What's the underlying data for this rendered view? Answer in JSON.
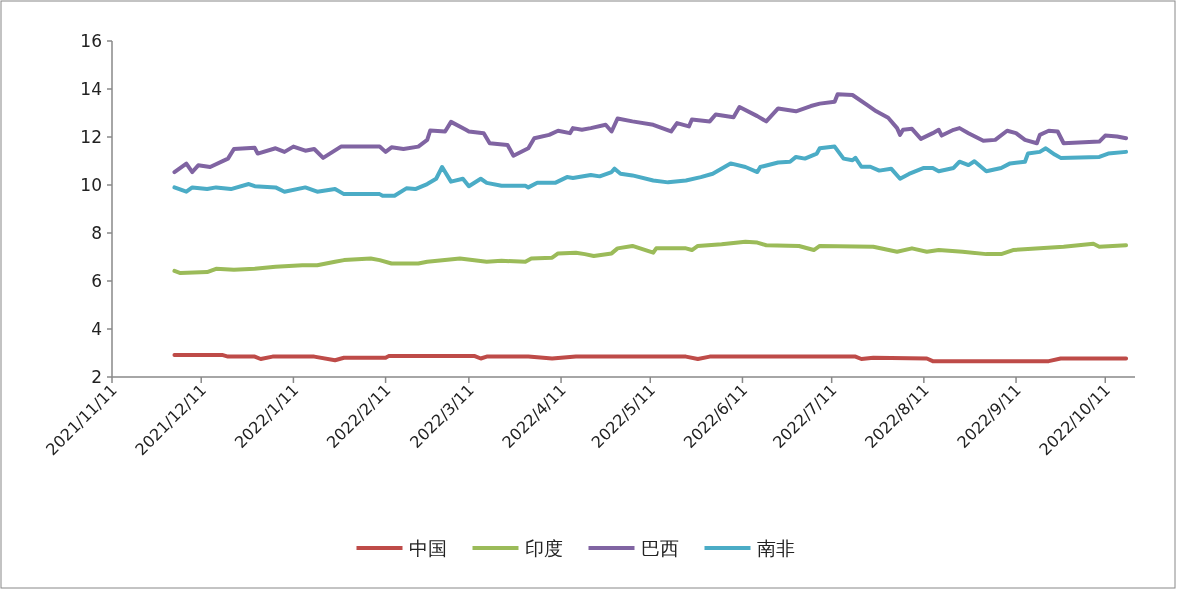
{
  "chart_data": {
    "type": "line",
    "legend": "bottom",
    "ylim": [
      2,
      16
    ],
    "yticks": [
      2,
      4,
      6,
      8,
      10,
      12,
      14,
      16
    ],
    "xlim": [
      "2021-11-11",
      "2022-10-21"
    ],
    "xticks": [
      {
        "value": "2021-11-11",
        "label": "2021/11/11"
      },
      {
        "value": "2021-12-11",
        "label": "2021/12/11"
      },
      {
        "value": "2022-01-11",
        "label": "2022/1/11"
      },
      {
        "value": "2022-02-11",
        "label": "2022/2/11"
      },
      {
        "value": "2022-03-11",
        "label": "2022/3/11"
      },
      {
        "value": "2022-04-11",
        "label": "2022/4/11"
      },
      {
        "value": "2022-05-11",
        "label": "2022/5/11"
      },
      {
        "value": "2022-06-11",
        "label": "2022/6/11"
      },
      {
        "value": "2022-07-11",
        "label": "2022/7/11"
      },
      {
        "value": "2022-08-11",
        "label": "2022/8/11"
      },
      {
        "value": "2022-09-11",
        "label": "2022/9/11"
      },
      {
        "value": "2022-10-11",
        "label": "2022/10/11"
      }
    ],
    "series": [
      {
        "name": "中国",
        "color": "#be4b48",
        "x": [
          "2021-12-02",
          "2021-12-18",
          "2021-12-20",
          "2021-12-29",
          "2021-12-31",
          "2022-01-04",
          "2022-01-18",
          "2022-01-25",
          "2022-01-28",
          "2022-02-11",
          "2022-02-12",
          "2022-03-13",
          "2022-03-15",
          "2022-03-17",
          "2022-03-31",
          "2022-04-08",
          "2022-04-16",
          "2022-05-05",
          "2022-05-23",
          "2022-05-27",
          "2022-05-31",
          "2022-07-19",
          "2022-07-21",
          "2022-07-25",
          "2022-08-12",
          "2022-08-14",
          "2022-09-22",
          "2022-09-26",
          "2022-10-18"
        ],
        "values": [
          2.92,
          2.92,
          2.85,
          2.85,
          2.75,
          2.85,
          2.85,
          2.7,
          2.8,
          2.8,
          2.87,
          2.87,
          2.77,
          2.85,
          2.85,
          2.77,
          2.85,
          2.85,
          2.85,
          2.75,
          2.85,
          2.85,
          2.75,
          2.8,
          2.77,
          2.66,
          2.66,
          2.77,
          2.77
        ]
      },
      {
        "name": "印度",
        "color": "#9bbb59",
        "x": [
          "2021-12-02",
          "2021-12-04",
          "2021-12-13",
          "2021-12-16",
          "2021-12-22",
          "2021-12-29",
          "2022-01-05",
          "2022-01-14",
          "2022-01-19",
          "2022-01-25",
          "2022-01-28",
          "2022-02-06",
          "2022-02-09",
          "2022-02-13",
          "2022-02-22",
          "2022-02-25",
          "2022-03-08",
          "2022-03-17",
          "2022-03-22",
          "2022-03-30",
          "2022-04-01",
          "2022-04-08",
          "2022-04-10",
          "2022-04-16",
          "2022-04-19",
          "2022-04-22",
          "2022-04-28",
          "2022-04-30",
          "2022-05-05",
          "2022-05-12",
          "2022-05-13",
          "2022-05-23",
          "2022-05-25",
          "2022-05-27",
          "2022-06-04",
          "2022-06-12",
          "2022-06-16",
          "2022-06-19",
          "2022-06-30",
          "2022-07-05",
          "2022-07-07",
          "2022-07-25",
          "2022-08-02",
          "2022-08-07",
          "2022-08-12",
          "2022-08-16",
          "2022-08-24",
          "2022-09-01",
          "2022-09-06",
          "2022-09-10",
          "2022-09-19",
          "2022-09-27",
          "2022-10-07",
          "2022-10-09",
          "2022-10-18"
        ],
        "values": [
          6.42,
          6.33,
          6.37,
          6.51,
          6.47,
          6.51,
          6.59,
          6.66,
          6.66,
          6.8,
          6.87,
          6.94,
          6.87,
          6.73,
          6.73,
          6.8,
          6.94,
          6.8,
          6.84,
          6.8,
          6.94,
          6.97,
          7.15,
          7.18,
          7.12,
          7.04,
          7.15,
          7.36,
          7.46,
          7.18,
          7.36,
          7.36,
          7.29,
          7.46,
          7.53,
          7.64,
          7.6,
          7.49,
          7.46,
          7.29,
          7.46,
          7.43,
          7.22,
          7.36,
          7.22,
          7.29,
          7.22,
          7.12,
          7.12,
          7.29,
          7.36,
          7.43,
          7.55,
          7.43,
          7.49
        ]
      },
      {
        "name": "巴西",
        "color": "#8064a2",
        "x": [
          "2021-12-02",
          "2021-12-06",
          "2021-12-08",
          "2021-12-10",
          "2021-12-14",
          "2021-12-20",
          "2021-12-22",
          "2021-12-29",
          "2021-12-30",
          "2022-01-05",
          "2022-01-08",
          "2022-01-11",
          "2022-01-15",
          "2022-01-18",
          "2022-01-21",
          "2022-01-27",
          "2022-02-09",
          "2022-02-11",
          "2022-02-13",
          "2022-02-17",
          "2022-02-22",
          "2022-02-25",
          "2022-02-26",
          "2022-03-03",
          "2022-03-05",
          "2022-03-10",
          "2022-03-11",
          "2022-03-16",
          "2022-03-18",
          "2022-03-24",
          "2022-03-26",
          "2022-03-31",
          "2022-04-02",
          "2022-04-07",
          "2022-04-10",
          "2022-04-14",
          "2022-04-15",
          "2022-04-18",
          "2022-04-21",
          "2022-04-26",
          "2022-04-28",
          "2022-04-30",
          "2022-05-05",
          "2022-05-12",
          "2022-05-18",
          "2022-05-20",
          "2022-05-24",
          "2022-05-25",
          "2022-05-31",
          "2022-06-02",
          "2022-06-08",
          "2022-06-10",
          "2022-06-16",
          "2022-06-19",
          "2022-06-23",
          "2022-06-29",
          "2022-07-04",
          "2022-07-07",
          "2022-07-12",
          "2022-07-13",
          "2022-07-18",
          "2022-07-23",
          "2022-07-26",
          "2022-07-30",
          "2022-08-02",
          "2022-08-03",
          "2022-08-04",
          "2022-08-07",
          "2022-08-10",
          "2022-08-14",
          "2022-08-16",
          "2022-08-17",
          "2022-08-21",
          "2022-08-23",
          "2022-08-26",
          "2022-08-31",
          "2022-09-04",
          "2022-09-08",
          "2022-09-11",
          "2022-09-14",
          "2022-09-18",
          "2022-09-19",
          "2022-09-22",
          "2022-09-25",
          "2022-09-27",
          "2022-10-09",
          "2022-10-11",
          "2022-10-15",
          "2022-10-18"
        ],
        "values": [
          10.54,
          10.89,
          10.54,
          10.82,
          10.75,
          11.1,
          11.5,
          11.55,
          11.31,
          11.53,
          11.38,
          11.6,
          11.43,
          11.5,
          11.13,
          11.6,
          11.6,
          11.38,
          11.57,
          11.5,
          11.6,
          11.88,
          12.27,
          12.23,
          12.63,
          12.3,
          12.23,
          12.16,
          11.74,
          11.67,
          11.22,
          11.53,
          11.95,
          12.09,
          12.26,
          12.16,
          12.37,
          12.3,
          12.37,
          12.51,
          12.23,
          12.77,
          12.65,
          12.51,
          12.23,
          12.58,
          12.44,
          12.73,
          12.65,
          12.94,
          12.82,
          13.25,
          12.87,
          12.65,
          13.19,
          13.07,
          13.29,
          13.39,
          13.47,
          13.78,
          13.75,
          13.33,
          13.07,
          12.8,
          12.37,
          12.09,
          12.3,
          12.34,
          11.92,
          12.16,
          12.3,
          12.06,
          12.3,
          12.37,
          12.16,
          11.84,
          11.88,
          12.26,
          12.16,
          11.88,
          11.74,
          12.09,
          12.26,
          12.23,
          11.74,
          11.81,
          12.06,
          12.02,
          11.95
        ]
      },
      {
        "name": "南非",
        "color": "#4bacc6",
        "x": [
          "2021-12-02",
          "2021-12-06",
          "2021-12-08",
          "2021-12-13",
          "2021-12-16",
          "2021-12-21",
          "2021-12-27",
          "2021-12-29",
          "2022-01-05",
          "2022-01-08",
          "2022-01-15",
          "2022-01-19",
          "2022-01-25",
          "2022-01-28",
          "2022-02-09",
          "2022-02-10",
          "2022-02-14",
          "2022-02-18",
          "2022-02-21",
          "2022-02-25",
          "2022-02-28",
          "2022-03-02",
          "2022-03-05",
          "2022-03-09",
          "2022-03-11",
          "2022-03-15",
          "2022-03-17",
          "2022-03-22",
          "2022-03-30",
          "2022-03-31",
          "2022-04-03",
          "2022-04-09",
          "2022-04-13",
          "2022-04-15",
          "2022-04-21",
          "2022-04-24",
          "2022-04-28",
          "2022-04-29",
          "2022-05-01",
          "2022-05-05",
          "2022-05-12",
          "2022-05-17",
          "2022-05-23",
          "2022-05-28",
          "2022-06-01",
          "2022-06-07",
          "2022-06-12",
          "2022-06-16",
          "2022-06-17",
          "2022-06-23",
          "2022-06-27",
          "2022-06-29",
          "2022-07-02",
          "2022-07-06",
          "2022-07-07",
          "2022-07-12",
          "2022-07-15",
          "2022-07-18",
          "2022-07-19",
          "2022-07-21",
          "2022-07-24",
          "2022-07-27",
          "2022-07-31",
          "2022-08-03",
          "2022-08-06",
          "2022-08-11",
          "2022-08-14",
          "2022-08-16",
          "2022-08-21",
          "2022-08-23",
          "2022-08-26",
          "2022-08-28",
          "2022-09-01",
          "2022-09-06",
          "2022-09-09",
          "2022-09-14",
          "2022-09-15",
          "2022-09-19",
          "2022-09-21",
          "2022-09-24",
          "2022-09-26",
          "2022-10-09",
          "2022-10-12",
          "2022-10-18"
        ],
        "values": [
          9.9,
          9.72,
          9.9,
          9.83,
          9.9,
          9.83,
          10.04,
          9.95,
          9.9,
          9.72,
          9.9,
          9.72,
          9.83,
          9.62,
          9.62,
          9.55,
          9.55,
          9.86,
          9.83,
          10.04,
          10.26,
          10.75,
          10.14,
          10.26,
          9.95,
          10.26,
          10.09,
          9.97,
          9.97,
          9.9,
          10.09,
          10.09,
          10.33,
          10.29,
          10.42,
          10.36,
          10.54,
          10.68,
          10.47,
          10.4,
          10.19,
          10.11,
          10.19,
          10.33,
          10.47,
          10.9,
          10.75,
          10.54,
          10.75,
          10.94,
          10.97,
          11.17,
          11.1,
          11.31,
          11.53,
          11.6,
          11.1,
          11.03,
          11.13,
          10.76,
          10.76,
          10.6,
          10.68,
          10.26,
          10.46,
          10.71,
          10.71,
          10.57,
          10.71,
          10.97,
          10.83,
          10.99,
          10.57,
          10.71,
          10.9,
          10.97,
          11.31,
          11.38,
          11.53,
          11.27,
          11.13,
          11.17,
          11.31,
          11.38
        ]
      }
    ]
  }
}
